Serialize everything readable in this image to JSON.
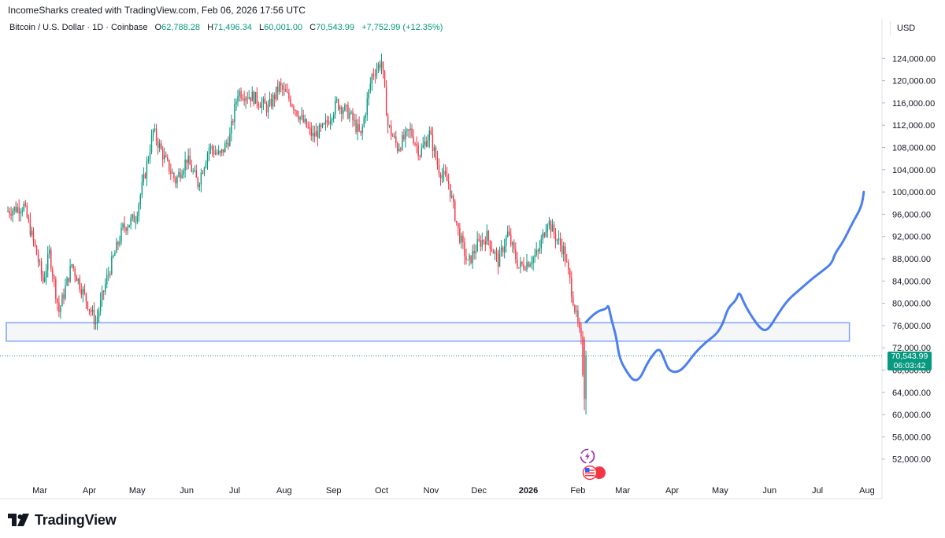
{
  "header": {
    "credit": "IncomeSharks created with TradingView.com, Feb 06, 2026 17:56 UTC"
  },
  "legend": {
    "symbol": "Bitcoin / U.S. Dollar · 1D · Coinbase",
    "o_label": "O",
    "o_value": "62,788.28",
    "h_label": "H",
    "h_value": "71,496.34",
    "l_label": "L",
    "l_value": "60,001.00",
    "c_label": "C",
    "c_value": "70,543.99",
    "change": "+7,752.99 (+12.35%)"
  },
  "currency": "USD",
  "price_tag": {
    "price": "70,543.99",
    "countdown": "06:03:42"
  },
  "brand": {
    "name": "TradingView"
  },
  "colors": {
    "up": "#089981",
    "down": "#f23645",
    "drawing": "#4c7ff0",
    "zone_border": "#7ea4f5",
    "zone_fill": "#f5f6f8"
  },
  "icons": [
    "tradingview-logo-icon",
    "lightning-event-icon",
    "us-flag-event-icon"
  ],
  "chart_data": {
    "type": "candlestick",
    "title": "Bitcoin / U.S. Dollar · 1D · Coinbase",
    "xlabel": "",
    "ylabel": "",
    "ylim": [
      48000,
      128000
    ],
    "y_ticks": [
      {
        "value": 124000,
        "label": "124,000.00"
      },
      {
        "value": 120000,
        "label": "120,000.00"
      },
      {
        "value": 116000,
        "label": "116,000.00"
      },
      {
        "value": 112000,
        "label": "112,000.00"
      },
      {
        "value": 108000,
        "label": "108,000.00"
      },
      {
        "value": 104000,
        "label": "104,000.00"
      },
      {
        "value": 100000,
        "label": "100,000.00"
      },
      {
        "value": 96000,
        "label": "96,000.00"
      },
      {
        "value": 92000,
        "label": "92,000.00"
      },
      {
        "value": 88000,
        "label": "88,000.00"
      },
      {
        "value": 84000,
        "label": "84,000.00"
      },
      {
        "value": 80000,
        "label": "80,000.00"
      },
      {
        "value": 76000,
        "label": "76,000.00"
      },
      {
        "value": 72000,
        "label": "72,000.00"
      },
      {
        "value": 68000,
        "label": "68,000.00"
      },
      {
        "value": 64000,
        "label": "64,000.00"
      },
      {
        "value": 60000,
        "label": "60,000.00"
      },
      {
        "value": 56000,
        "label": "56,000.00"
      },
      {
        "value": 52000,
        "label": "52,000.00"
      }
    ],
    "x_ticks": [
      {
        "day": 0,
        "label": "Mar"
      },
      {
        "day": 31,
        "label": "Apr"
      },
      {
        "day": 61,
        "label": "May"
      },
      {
        "day": 92,
        "label": "Jun"
      },
      {
        "day": 122,
        "label": "Jul"
      },
      {
        "day": 153,
        "label": "Aug"
      },
      {
        "day": 184,
        "label": "Sep"
      },
      {
        "day": 214,
        "label": "Oct"
      },
      {
        "day": 245,
        "label": "Nov"
      },
      {
        "day": 275,
        "label": "Dec"
      },
      {
        "day": 306,
        "label": "2026"
      },
      {
        "day": 337,
        "label": "Feb"
      },
      {
        "day": 365,
        "label": "Mar"
      },
      {
        "day": 396,
        "label": "Apr"
      },
      {
        "day": 426,
        "label": "May"
      },
      {
        "day": 457,
        "label": "Jun"
      },
      {
        "day": 487,
        "label": "Jul"
      },
      {
        "day": 518,
        "label": "Aug"
      }
    ],
    "x_domain_days": [
      -21,
      521
    ],
    "anchors": [
      {
        "day": -21,
        "price": 96500
      },
      {
        "day": -10,
        "price": 97500
      },
      {
        "day": -3,
        "price": 90000
      },
      {
        "day": 2,
        "price": 84000
      },
      {
        "day": 6,
        "price": 89000
      },
      {
        "day": 12,
        "price": 78500
      },
      {
        "day": 20,
        "price": 87000
      },
      {
        "day": 27,
        "price": 82000
      },
      {
        "day": 35,
        "price": 76500
      },
      {
        "day": 42,
        "price": 84500
      },
      {
        "day": 52,
        "price": 93500
      },
      {
        "day": 60,
        "price": 95500
      },
      {
        "day": 66,
        "price": 103500
      },
      {
        "day": 71,
        "price": 111000
      },
      {
        "day": 78,
        "price": 106000
      },
      {
        "day": 85,
        "price": 102000
      },
      {
        "day": 92,
        "price": 106000
      },
      {
        "day": 99,
        "price": 101500
      },
      {
        "day": 106,
        "price": 108000
      },
      {
        "day": 113,
        "price": 106500
      },
      {
        "day": 119,
        "price": 110000
      },
      {
        "day": 124,
        "price": 118000
      },
      {
        "day": 134,
        "price": 117000
      },
      {
        "day": 143,
        "price": 115000
      },
      {
        "day": 150,
        "price": 119000
      },
      {
        "day": 157,
        "price": 116500
      },
      {
        "day": 164,
        "price": 113000
      },
      {
        "day": 171,
        "price": 110000
      },
      {
        "day": 178,
        "price": 111500
      },
      {
        "day": 186,
        "price": 116000
      },
      {
        "day": 194,
        "price": 114000
      },
      {
        "day": 201,
        "price": 110000
      },
      {
        "day": 208,
        "price": 121000
      },
      {
        "day": 214,
        "price": 123500
      },
      {
        "day": 218,
        "price": 112000
      },
      {
        "day": 224,
        "price": 108000
      },
      {
        "day": 232,
        "price": 111000
      },
      {
        "day": 238,
        "price": 107000
      },
      {
        "day": 244,
        "price": 110500
      },
      {
        "day": 250,
        "price": 104000
      },
      {
        "day": 256,
        "price": 101500
      },
      {
        "day": 262,
        "price": 93000
      },
      {
        "day": 268,
        "price": 87000
      },
      {
        "day": 274,
        "price": 90500
      },
      {
        "day": 280,
        "price": 92000
      },
      {
        "day": 287,
        "price": 87500
      },
      {
        "day": 293,
        "price": 92500
      },
      {
        "day": 300,
        "price": 86500
      },
      {
        "day": 306,
        "price": 87500
      },
      {
        "day": 312,
        "price": 89000
      },
      {
        "day": 318,
        "price": 95000
      },
      {
        "day": 322,
        "price": 92500
      },
      {
        "day": 328,
        "price": 89500
      },
      {
        "day": 332,
        "price": 84000
      },
      {
        "day": 336,
        "price": 77500
      },
      {
        "day": 339,
        "price": 73000
      },
      {
        "day": 341,
        "price": 62788.28
      },
      {
        "day": 342,
        "price": 70543.99
      }
    ],
    "last_candle": {
      "open": 62788.28,
      "high": 71496.34,
      "low": 60001.0,
      "close": 70543.99
    },
    "support_zone": {
      "from_day": -21,
      "to_day": 507,
      "low": 73200,
      "high": 76500
    },
    "projection_path": [
      {
        "day": 342,
        "price": 76600
      },
      {
        "day": 348,
        "price": 78500
      },
      {
        "day": 355,
        "price": 79000
      },
      {
        "day": 356,
        "price": 79800
      },
      {
        "day": 358,
        "price": 77000
      },
      {
        "day": 361,
        "price": 74000
      },
      {
        "day": 363,
        "price": 70000
      },
      {
        "day": 368,
        "price": 67500
      },
      {
        "day": 372,
        "price": 66000
      },
      {
        "day": 376,
        "price": 66500
      },
      {
        "day": 380,
        "price": 69000
      },
      {
        "day": 384,
        "price": 70800
      },
      {
        "day": 388,
        "price": 72000
      },
      {
        "day": 391,
        "price": 70000
      },
      {
        "day": 394,
        "price": 67800
      },
      {
        "day": 400,
        "price": 67600
      },
      {
        "day": 405,
        "price": 69000
      },
      {
        "day": 410,
        "price": 71000
      },
      {
        "day": 417,
        "price": 73000
      },
      {
        "day": 424,
        "price": 74500
      },
      {
        "day": 428,
        "price": 76500
      },
      {
        "day": 431,
        "price": 79200
      },
      {
        "day": 436,
        "price": 80500
      },
      {
        "day": 438,
        "price": 82200
      },
      {
        "day": 441,
        "price": 80000
      },
      {
        "day": 446,
        "price": 77500
      },
      {
        "day": 452,
        "price": 75200
      },
      {
        "day": 456,
        "price": 75200
      },
      {
        "day": 461,
        "price": 77500
      },
      {
        "day": 468,
        "price": 80500
      },
      {
        "day": 476,
        "price": 82500
      },
      {
        "day": 484,
        "price": 84500
      },
      {
        "day": 491,
        "price": 86000
      },
      {
        "day": 496,
        "price": 87200
      },
      {
        "day": 498,
        "price": 89000
      },
      {
        "day": 503,
        "price": 91000
      },
      {
        "day": 509,
        "price": 94500
      },
      {
        "day": 513,
        "price": 96500
      },
      {
        "day": 515,
        "price": 98000
      },
      {
        "day": 516,
        "price": 100000
      }
    ]
  }
}
